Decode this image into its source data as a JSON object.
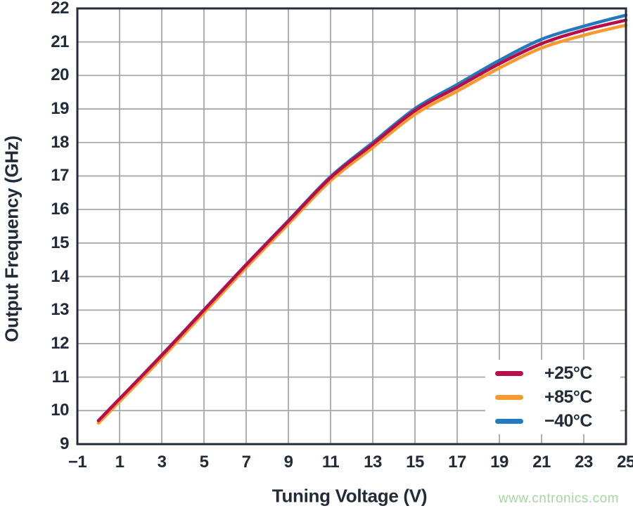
{
  "chart_data": {
    "type": "line",
    "title": "",
    "xlabel": "Tuning Voltage (V)",
    "ylabel": "Output Frequency (GHz)",
    "xlim": [
      -1,
      25
    ],
    "ylim": [
      9,
      22
    ],
    "x_ticks": [
      -1,
      1,
      3,
      5,
      7,
      9,
      11,
      13,
      15,
      17,
      19,
      21,
      23,
      25
    ],
    "x_tick_labels": [
      "−1",
      "1",
      "3",
      "5",
      "7",
      "9",
      "11",
      "13",
      "15",
      "17",
      "19",
      "21",
      "23",
      "25"
    ],
    "y_ticks": [
      9,
      10,
      11,
      12,
      13,
      14,
      15,
      16,
      17,
      18,
      19,
      20,
      21,
      22
    ],
    "grid": true,
    "grid_x_step_volts": 2,
    "grid_y_step_ghz": 1,
    "legend_position": "lower right",
    "series": [
      {
        "name": "+25°C",
        "color": "#b80d4b",
        "x": [
          0,
          1,
          3,
          5,
          7,
          9,
          11,
          13,
          15,
          17,
          19,
          21,
          23,
          25
        ],
        "y": [
          9.7,
          10.35,
          11.65,
          13.0,
          14.35,
          15.65,
          16.95,
          17.95,
          18.95,
          19.65,
          20.35,
          20.95,
          21.35,
          21.65
        ]
      },
      {
        "name": "+85°C",
        "color": "#f8992e",
        "x": [
          0,
          1,
          3,
          5,
          7,
          9,
          11,
          13,
          15,
          17,
          19,
          21,
          23,
          25
        ],
        "y": [
          9.63,
          10.27,
          11.57,
          12.92,
          14.27,
          15.57,
          16.86,
          17.85,
          18.84,
          19.53,
          20.22,
          20.82,
          21.2,
          21.5
        ]
      },
      {
        "name": "−40°C",
        "color": "#2279bf",
        "x": [
          0,
          1,
          3,
          5,
          7,
          9,
          11,
          13,
          15,
          17,
          19,
          21,
          23,
          25
        ],
        "y": [
          9.7,
          10.35,
          11.66,
          13.01,
          14.36,
          15.67,
          16.98,
          18.0,
          19.01,
          19.73,
          20.45,
          21.08,
          21.47,
          21.8
        ]
      }
    ]
  },
  "styles": {
    "grid_color": "#a6a7a9",
    "spine_color": "#252d38",
    "text_color": "#222b38",
    "line_width": 4.5
  },
  "watermark": {
    "text": "www.cntronics.com",
    "color": "#a4d6a1"
  }
}
